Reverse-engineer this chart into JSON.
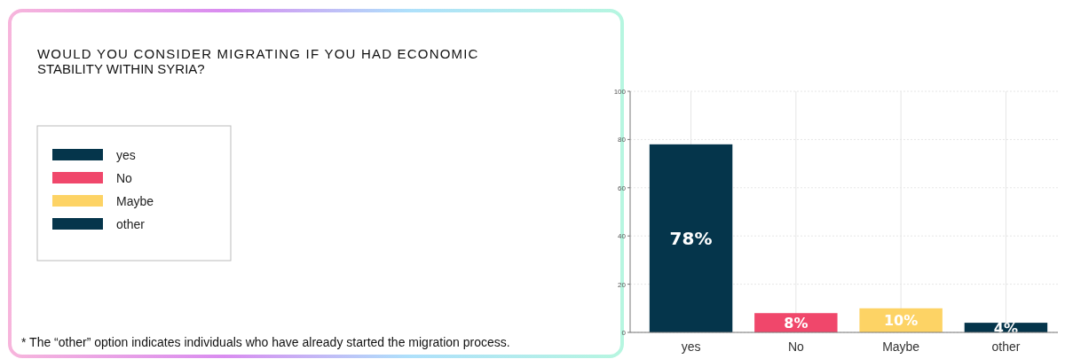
{
  "chart_data": {
    "type": "bar",
    "title": "WOULD YOU CONSIDER MIGRATING IF YOU HAD ECONOMIC STABILITY WITHIN SYRIA?",
    "categories": [
      "yes",
      "No",
      "Maybe",
      "other"
    ],
    "stacked": true,
    "series": [
      {
        "name": "yes",
        "color": "#05354b",
        "values": [
          78,
          null,
          null,
          null
        ],
        "value_labels": [
          "78%",
          null,
          null,
          null
        ]
      },
      {
        "name": "No",
        "color": "#f0476b",
        "values": [
          null,
          8,
          null,
          null
        ],
        "value_labels": [
          null,
          "8%",
          null,
          null
        ]
      },
      {
        "name": "Maybe",
        "color": "#fdd365",
        "values": [
          null,
          null,
          10,
          null
        ],
        "value_labels": [
          null,
          null,
          "10%",
          null
        ]
      },
      {
        "name": "other",
        "color": "#05354b",
        "values": [
          null,
          null,
          null,
          4
        ],
        "value_labels": [
          null,
          null,
          null,
          "4%"
        ]
      }
    ],
    "ylim": [
      0,
      100
    ],
    "yticks": [
      0,
      20,
      40,
      60,
      80,
      100
    ],
    "grid": true,
    "legend": "left",
    "annotations": [
      "* The “other” option indicates individuals who have already started the migration process."
    ]
  }
}
